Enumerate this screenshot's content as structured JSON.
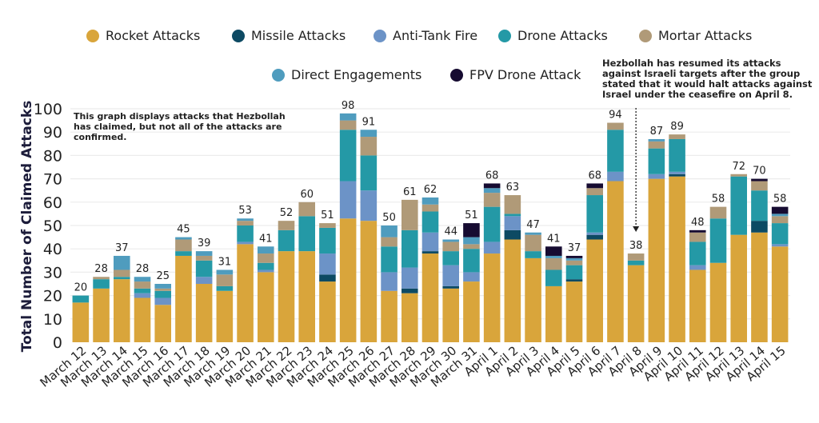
{
  "chart_data": {
    "type": "bar",
    "stacked": true,
    "title": "",
    "xlabel": "",
    "ylabel": "Total Number of Claimed Attacks",
    "ylim": [
      0,
      100
    ],
    "yticks": [
      0,
      10,
      20,
      30,
      40,
      50,
      60,
      70,
      80,
      90,
      100
    ],
    "grid": true,
    "legend_position": "top",
    "categories": [
      "March 12",
      "March 13",
      "March 14",
      "March 15",
      "March 16",
      "March 17",
      "March 18",
      "March 19",
      "March 20",
      "March 21",
      "March 22",
      "March 23",
      "March 24",
      "March 25",
      "March 26",
      "March 27",
      "March 28",
      "March 29",
      "March 30",
      "March 31",
      "April 1",
      "April 2",
      "April 3",
      "April 4",
      "April 5",
      "April 6",
      "April 7",
      "April 8",
      "April 9",
      "April 10",
      "April 11",
      "April 12",
      "April 13",
      "April 14",
      "April 15"
    ],
    "totals": [
      20,
      28,
      37,
      28,
      25,
      45,
      39,
      31,
      53,
      41,
      52,
      60,
      51,
      98,
      91,
      50,
      61,
      62,
      44,
      51,
      68,
      63,
      47,
      41,
      37,
      68,
      94,
      38,
      87,
      89,
      48,
      58,
      72,
      70,
      58
    ],
    "series": [
      {
        "name": "Rocket Attacks",
        "color": "#D9A53B",
        "values": [
          17,
          23,
          27,
          19,
          16,
          37,
          25,
          22,
          42,
          30,
          39,
          39,
          26,
          53,
          52,
          22,
          21,
          38,
          23,
          26,
          38,
          44,
          36,
          24,
          26,
          44,
          69,
          33,
          70,
          71,
          31,
          34,
          46,
          47,
          41
        ]
      },
      {
        "name": "Missile Attacks",
        "color": "#0D4A63",
        "values": [
          0,
          0,
          0,
          0,
          0,
          0,
          0,
          0,
          0,
          0,
          0,
          0,
          3,
          0,
          0,
          0,
          2,
          1,
          1,
          0,
          0,
          4,
          0,
          0,
          1,
          2,
          0,
          0,
          0,
          1,
          0,
          0,
          0,
          5,
          0
        ]
      },
      {
        "name": "Anti-Tank Fire",
        "color": "#6C93C7",
        "values": [
          0,
          0,
          0,
          2,
          3,
          0,
          3,
          0,
          1,
          1,
          0,
          0,
          9,
          16,
          13,
          8,
          9,
          8,
          9,
          4,
          5,
          6,
          0,
          0,
          0,
          1,
          4,
          0,
          2,
          1,
          2,
          0,
          0,
          0,
          1
        ]
      },
      {
        "name": "Drone Attacks",
        "color": "#2499A6",
        "values": [
          3,
          4,
          1,
          2,
          3,
          2,
          7,
          2,
          7,
          3,
          9,
          15,
          11,
          22,
          15,
          11,
          16,
          9,
          6,
          10,
          15,
          1,
          3,
          7,
          6,
          16,
          18,
          2,
          11,
          14,
          10,
          19,
          25,
          13,
          9
        ]
      },
      {
        "name": "Mortar Attacks",
        "color": "#B09A78",
        "values": [
          0,
          1,
          3,
          3,
          1,
          5,
          2,
          5,
          2,
          4,
          4,
          6,
          2,
          4,
          8,
          4,
          13,
          3,
          4,
          2,
          6,
          8,
          7,
          5,
          2,
          3,
          3,
          3,
          3,
          2,
          4,
          5,
          1,
          4,
          3
        ]
      },
      {
        "name": "Direct Engagements",
        "color": "#4F9CBE",
        "values": [
          0,
          0,
          6,
          2,
          2,
          1,
          2,
          2,
          1,
          3,
          0,
          0,
          0,
          3,
          3,
          5,
          0,
          3,
          1,
          3,
          2,
          0,
          1,
          1,
          1,
          0,
          0,
          0,
          1,
          0,
          0,
          0,
          0,
          0,
          1
        ]
      },
      {
        "name": "FPV Drone Attack",
        "color": "#160B31",
        "values": [
          0,
          0,
          0,
          0,
          0,
          0,
          0,
          0,
          0,
          0,
          0,
          0,
          0,
          0,
          0,
          0,
          0,
          0,
          0,
          6,
          2,
          0,
          0,
          4,
          1,
          2,
          0,
          0,
          0,
          0,
          1,
          0,
          0,
          1,
          3
        ]
      }
    ],
    "annotations": [
      {
        "text": "This graph displays attacks that Hezbollah has claimed, but not all of the attacks are confirmed."
      },
      {
        "text": "Hezbollah has resumed its attacks against Israeli targets after the group stated that it would halt attacks against Israel under the ceasefire on April 8.",
        "target": "April 8"
      }
    ]
  },
  "legend": {
    "items": [
      {
        "label": "Rocket Attacks",
        "color": "#D9A53B"
      },
      {
        "label": "Missile Attacks",
        "color": "#0D4A63"
      },
      {
        "label": "Anti-Tank Fire",
        "color": "#6C93C7"
      },
      {
        "label": "Drone Attacks",
        "color": "#2499A6"
      },
      {
        "label": "Mortar Attacks",
        "color": "#B09A78"
      },
      {
        "label": "Direct Engagements",
        "color": "#4F9CBE"
      },
      {
        "label": "FPV Drone Attack",
        "color": "#160B31"
      }
    ]
  },
  "notes": {
    "left_lines": [
      "This graph displays attacks that Hezbollah",
      "has claimed, but not all of the attacks are",
      "confirmed."
    ],
    "right_lines": [
      "Hezbollah has resumed its attacks",
      "against Israeli targets after the group",
      "stated that it would halt attacks against",
      "Israel under the ceasefire on April 8."
    ]
  }
}
